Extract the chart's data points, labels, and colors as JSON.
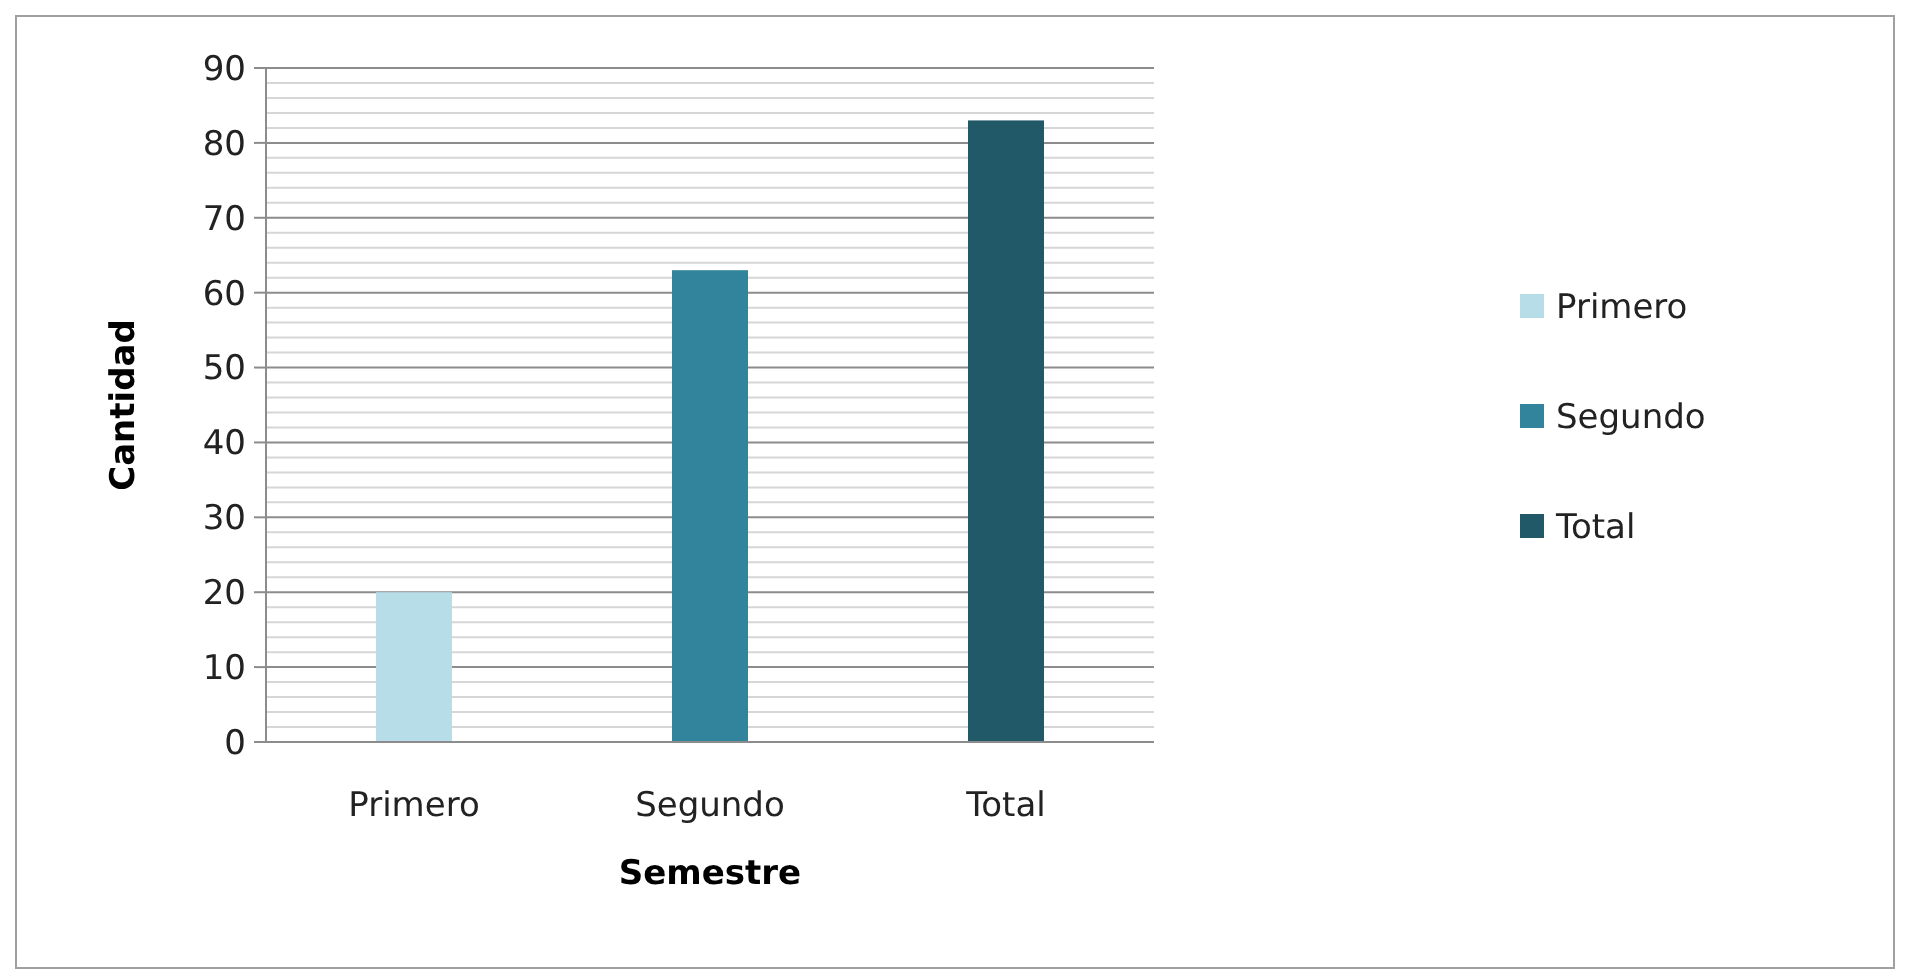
{
  "chart_data": {
    "type": "bar",
    "xlabel": "Semestre",
    "ylabel": "Cantidad",
    "categories": [
      "Primero",
      "Segundo",
      "Total"
    ],
    "stacked": true,
    "series": [
      {
        "name": "Primero",
        "color": "#b7dde8",
        "values": [
          20,
          null,
          null
        ]
      },
      {
        "name": "Segundo",
        "color": "#31849b",
        "values": [
          null,
          63,
          null
        ]
      },
      {
        "name": "Total",
        "color": "#215968",
        "values": [
          null,
          null,
          83
        ]
      }
    ],
    "ylim": [
      0,
      90
    ],
    "yticks": [
      0,
      {
        "value": 2,
        "label": null
      },
      {
        "value": 4,
        "label": null
      },
      {
        "value": 6,
        "label": null
      },
      {
        "value": 8,
        "label": null
      },
      10,
      {
        "value": 12,
        "label": null
      },
      {
        "value": 14,
        "label": null
      },
      {
        "value": 16,
        "label": null
      },
      {
        "value": 18,
        "label": null
      },
      20,
      {
        "value": 22,
        "label": null
      },
      {
        "value": 24,
        "label": null
      },
      {
        "value": 26,
        "label": null
      },
      {
        "value": 28,
        "label": null
      },
      30,
      {
        "value": 32,
        "label": null
      },
      {
        "value": 34,
        "label": null
      },
      {
        "value": 36,
        "label": null
      },
      {
        "value": 38,
        "label": null
      },
      40,
      {
        "value": 42,
        "label": null
      },
      {
        "value": 44,
        "label": null
      },
      {
        "value": 46,
        "label": null
      },
      {
        "value": 48,
        "label": null
      },
      50,
      {
        "value": 52,
        "label": null
      },
      {
        "value": 54,
        "label": null
      },
      {
        "value": 56,
        "label": null
      },
      {
        "value": 58,
        "label": null
      },
      60,
      {
        "value": 62,
        "label": null
      },
      {
        "value": 64,
        "label": null
      },
      {
        "value": 66,
        "label": null
      },
      {
        "value": 68,
        "label": null
      },
      70,
      {
        "value": 72,
        "label": null
      },
      {
        "value": 74,
        "label": null
      },
      {
        "value": 76,
        "label": null
      },
      {
        "value": 78,
        "label": null
      },
      80,
      {
        "value": 82,
        "label": null
      },
      {
        "value": 84,
        "label": null
      },
      {
        "value": 86,
        "label": null
      },
      {
        "value": 88,
        "label": null
      },
      90
    ],
    "grid": true,
    "legend": "right"
  }
}
